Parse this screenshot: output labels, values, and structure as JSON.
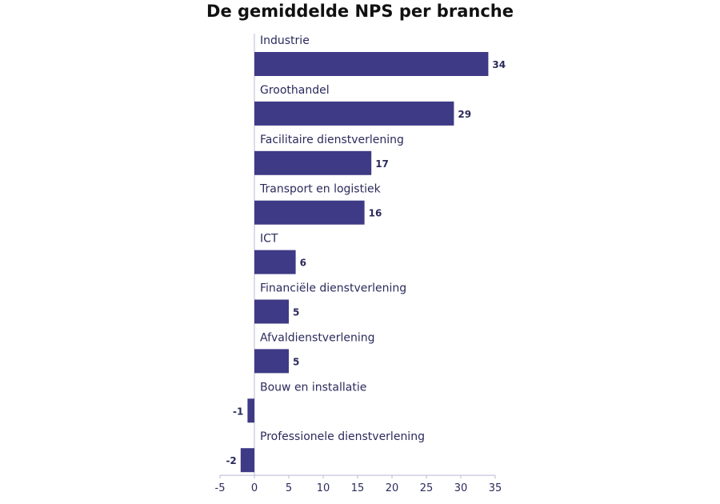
{
  "chart_data": {
    "type": "bar",
    "orientation": "horizontal",
    "title": "De gemiddelde NPS per branche",
    "categories": [
      "Industrie",
      "Groothandel",
      "Facilitaire dienstverlening",
      "Transport en logistiek",
      "ICT",
      "Financiële dienstverlening",
      "Afvaldienstverlening",
      "Bouw en installatie",
      "Professionele dienstverlening"
    ],
    "values": [
      34,
      29,
      17,
      16,
      6,
      5,
      5,
      -1,
      -2
    ],
    "value_labels": [
      "34",
      "29",
      "17",
      "16",
      "6",
      "5",
      "5",
      "-1",
      "-2"
    ],
    "xlim": [
      -5,
      35
    ],
    "xticks": [
      "-5",
      "0",
      "5",
      "10",
      "15",
      "20",
      "25",
      "30",
      "35"
    ],
    "bar_color": "#3e3a85",
    "grid": false
  }
}
